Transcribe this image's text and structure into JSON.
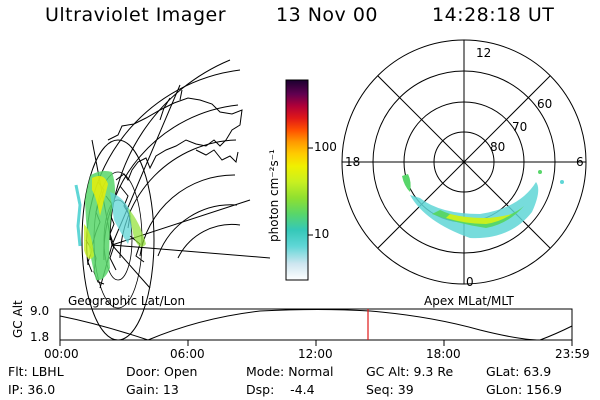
{
  "header": {
    "instrument": "Ultraviolet Imager",
    "date": "13 Nov 00",
    "time": "14:28:18 UT"
  },
  "left_map": {
    "caption": "Geographic Lat/Lon"
  },
  "colorbar": {
    "unit_label": "photon cm⁻²s⁻¹",
    "ticks": [
      "100",
      "10"
    ],
    "scale": "log",
    "colors": [
      "#ffffff",
      "#cfe6f0",
      "#5fd6d6",
      "#35c8b8",
      "#58d66a",
      "#8fe030",
      "#c8f020",
      "#f0f000",
      "#ffcc00",
      "#ff9a00",
      "#ff5000",
      "#e01818",
      "#b00038",
      "#600050",
      "#1a0030"
    ]
  },
  "polar_plot": {
    "caption": "Apex MLat/MLT",
    "mlt_labels": [
      "12",
      "6",
      "0",
      "18"
    ],
    "lat_labels": [
      "60",
      "70",
      "80"
    ]
  },
  "timeline": {
    "ylabel": "GC Alt",
    "yticks": [
      "9.0",
      "1.8"
    ],
    "xticks": [
      "00:00",
      "06:00",
      "12:00",
      "18:00",
      "23:59"
    ],
    "current_time": "14:28"
  },
  "info": {
    "row1": {
      "flt": "Flt: LBHL",
      "door": "Door: Open",
      "mode": "Mode: Normal",
      "gcalt": "GC Alt: 9.3 Re",
      "glat": "GLat:  63.9"
    },
    "row2": {
      "ip": "IP: 36.0",
      "gain": "Gain: 13",
      "dsp": "Dsp:    -4.4",
      "seq": "Seq: 39",
      "glon": "GLon: 156.9"
    }
  }
}
